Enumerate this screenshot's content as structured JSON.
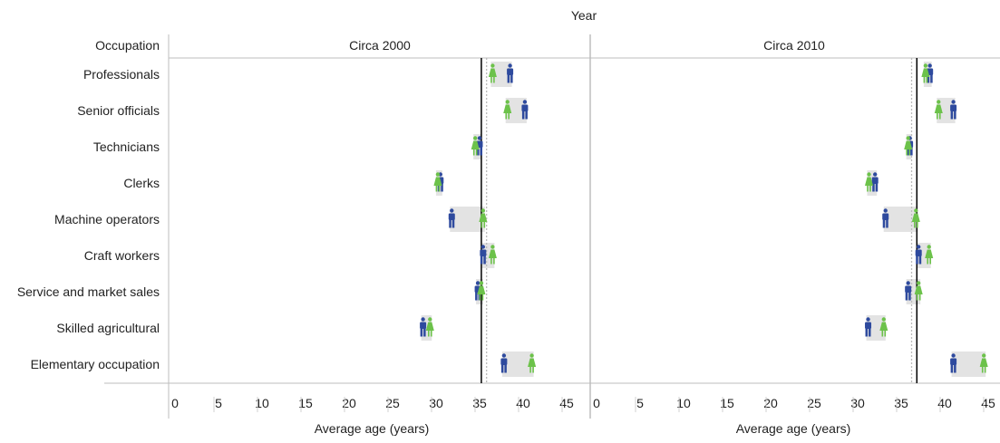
{
  "chart_data": {
    "type": "scatter",
    "title": "",
    "column_header": "Year",
    "row_header": "Occupation",
    "xlabel": "Average age (years)",
    "xlim": [
      0,
      48
    ],
    "xticks": [
      0,
      5,
      10,
      15,
      20,
      25,
      30,
      35,
      40,
      45
    ],
    "categories": [
      "Professionals",
      "Senior officials",
      "Technicians",
      "Clerks",
      "Machine operators",
      "Craft workers",
      "Service and market sales",
      "Skilled agricultural",
      "Elementary occupation"
    ],
    "colors": {
      "male": "#2e4a9e",
      "female": "#6cc24a",
      "gap_band": "#e3e3e3",
      "overall_line": "#000000",
      "reference_line": "#bbbbbb"
    },
    "panels": [
      {
        "name": "Circa 2000",
        "overall_average": 35.2,
        "reference_average": 35.8,
        "series": [
          {
            "key": "male",
            "values": [
              38.5,
              40.2,
              35.0,
              30.5,
              31.8,
              35.4,
              34.8,
              28.5,
              37.8
            ]
          },
          {
            "key": "female",
            "values": [
              36.5,
              38.2,
              34.5,
              30.2,
              35.4,
              36.5,
              35.2,
              29.3,
              41.0
            ]
          }
        ]
      },
      {
        "name": "Circa 2010",
        "overall_average": 36.8,
        "reference_average": 36.2,
        "series": [
          {
            "key": "male",
            "values": [
              38.3,
              41.0,
              36.0,
              32.0,
              33.2,
              37.0,
              35.8,
              31.2,
              41.0
            ]
          },
          {
            "key": "female",
            "values": [
              37.8,
              39.3,
              35.8,
              31.3,
              36.7,
              38.2,
              37.0,
              33.0,
              44.5
            ]
          }
        ]
      }
    ]
  }
}
